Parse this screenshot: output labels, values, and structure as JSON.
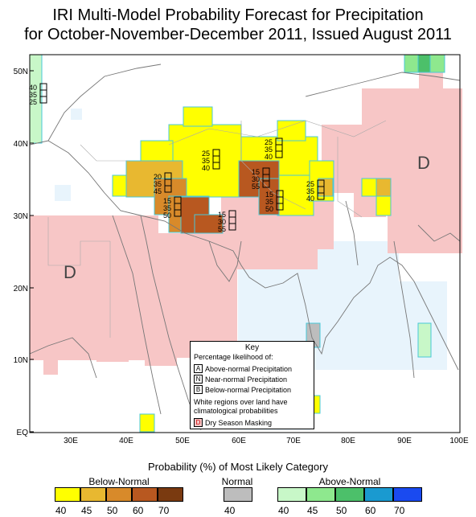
{
  "title": {
    "line1": "IRI Multi-Model Probability Forecast for Precipitation",
    "line2": "for October-November-December 2011, Issued August 2011"
  },
  "axes": {
    "lat_labels": [
      "50N",
      "40N",
      "30N",
      "20N",
      "10N",
      "EQ"
    ],
    "lon_labels": [
      "30E",
      "40E",
      "50E",
      "60E",
      "70E",
      "80E",
      "90E",
      "100E"
    ]
  },
  "map_labels": {
    "dry_left": "D",
    "dry_right": "D"
  },
  "forecast_boxes": [
    {
      "lines": [
        "40",
        "35",
        "25"
      ]
    },
    {
      "lines": [
        "25",
        "35",
        "40"
      ]
    },
    {
      "lines": [
        "25",
        "35",
        "40"
      ]
    },
    {
      "lines": [
        "20",
        "35",
        "45"
      ]
    },
    {
      "lines": [
        "15",
        "35",
        "50"
      ]
    },
    {
      "lines": [
        "15",
        "30",
        "55"
      ]
    },
    {
      "lines": [
        "15",
        "30",
        "55"
      ]
    },
    {
      "lines": [
        "15",
        "35",
        "50"
      ]
    },
    {
      "lines": [
        "25",
        "35",
        "40"
      ]
    }
  ],
  "key": {
    "title": "Key",
    "subtitle": "Percentage likelihood of:",
    "rows": [
      {
        "letter": "A",
        "text": "Above-normal Precipitation"
      },
      {
        "letter": "N",
        "text": "Near-normal Precipitation"
      },
      {
        "letter": "B",
        "text": "Below-normal Precipitation"
      }
    ],
    "white_note_1": "White regions over land have",
    "white_note_2": "climatological probabilities",
    "dry_letter": "D",
    "dry_text": "Dry Season Masking"
  },
  "legend": {
    "title": "Probability (%) of Most Likely Category",
    "below_label": "Below-Normal",
    "normal_label": "Normal",
    "above_label": "Above-Normal",
    "below": [
      {
        "value": "40",
        "color": "#ffff00"
      },
      {
        "value": "45",
        "color": "#e8b830"
      },
      {
        "value": "50",
        "color": "#d88a2a"
      },
      {
        "value": "60",
        "color": "#b85820"
      },
      {
        "value": "70",
        "color": "#7a3a10"
      }
    ],
    "normal": [
      {
        "value": "40",
        "color": "#bdbdbd"
      }
    ],
    "above": [
      {
        "value": "40",
        "color": "#c8f7c8"
      },
      {
        "value": "45",
        "color": "#8ee88e"
      },
      {
        "value": "50",
        "color": "#4cc06a"
      },
      {
        "value": "60",
        "color": "#1a9ad0"
      },
      {
        "value": "70",
        "color": "#1a4af0"
      }
    ]
  },
  "colors": {
    "dry": "#f7c6c6",
    "light_blue": "#e8f4fc",
    "cell_border": "#48c8d8",
    "frame": "#000000"
  }
}
